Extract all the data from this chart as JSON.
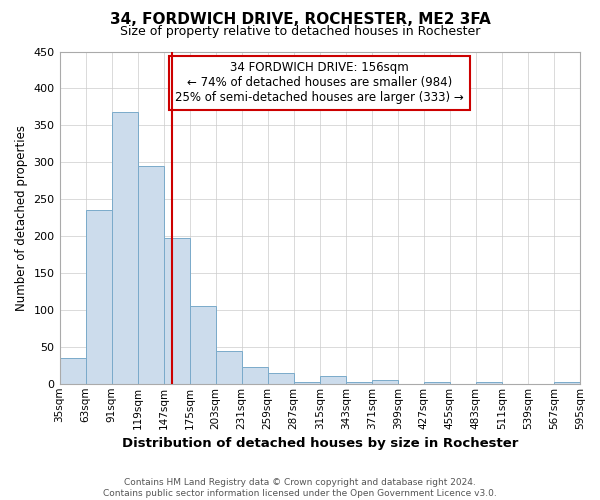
{
  "title": "34, FORDWICH DRIVE, ROCHESTER, ME2 3FA",
  "subtitle": "Size of property relative to detached houses in Rochester",
  "xlabel": "Distribution of detached houses by size in Rochester",
  "ylabel": "Number of detached properties",
  "bar_color": "#ccdcec",
  "bar_edgecolor": "#7aaaca",
  "background_color": "#ffffff",
  "grid_color": "#cccccc",
  "vline_x": 156,
  "vline_color": "#cc0000",
  "annotation_box_edgecolor": "#cc0000",
  "bin_edges": [
    35,
    63,
    91,
    119,
    147,
    175,
    203,
    231,
    259,
    287,
    315,
    343,
    371,
    399,
    427,
    455,
    483,
    511,
    539,
    567,
    595
  ],
  "bar_heights": [
    35,
    236,
    368,
    295,
    198,
    105,
    45,
    23,
    15,
    3,
    10,
    3,
    5,
    0,
    3,
    0,
    3,
    0,
    0,
    2
  ],
  "ylim": [
    0,
    450
  ],
  "yticks": [
    0,
    50,
    100,
    150,
    200,
    250,
    300,
    350,
    400,
    450
  ],
  "annotation_line1": "34 FORDWICH DRIVE: 156sqm",
  "annotation_line2": "← 74% of detached houses are smaller (984)",
  "annotation_line3": "25% of semi-detached houses are larger (333) →",
  "footer_line1": "Contains HM Land Registry data © Crown copyright and database right 2024.",
  "footer_line2": "Contains public sector information licensed under the Open Government Licence v3.0.",
  "tick_labels": [
    "35sqm",
    "63sqm",
    "91sqm",
    "119sqm",
    "147sqm",
    "175sqm",
    "203sqm",
    "231sqm",
    "259sqm",
    "287sqm",
    "315sqm",
    "343sqm",
    "371sqm",
    "399sqm",
    "427sqm",
    "455sqm",
    "483sqm",
    "511sqm",
    "539sqm",
    "567sqm",
    "595sqm"
  ]
}
